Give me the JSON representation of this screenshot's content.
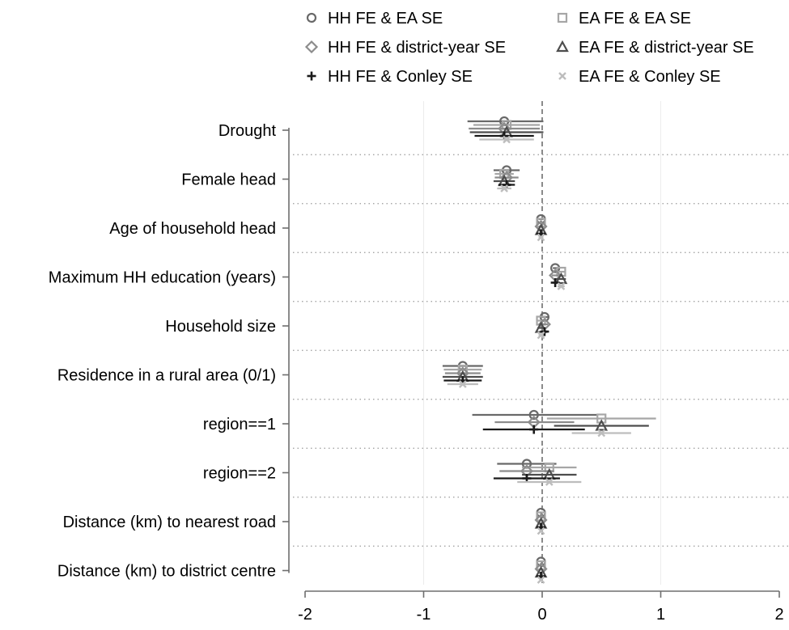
{
  "chart_data": {
    "type": "coefficient-plot",
    "title": "",
    "xlabel": "",
    "ylabel": "",
    "xlim": [
      -2,
      2
    ],
    "xticks": [
      -2,
      -1,
      0,
      1,
      2
    ],
    "xtick_labels": [
      "-2",
      "-1",
      "0",
      "1",
      "2"
    ],
    "reference_line": 0,
    "grid": "vertical gridlines at -1 and 1; dotted separators between variables",
    "legend_position": "top, 2 columns",
    "categories": [
      "Drought",
      "Female head",
      "Age of household head",
      "Maximum HH education (years)",
      "Household size",
      "Residence in a rural area (0/1)",
      "region==1",
      "region==2",
      "Distance (km) to nearest road",
      "Distance (km) to district centre"
    ],
    "series": [
      {
        "name": "HH FE & EA SE",
        "marker": "circle",
        "color": "#696969",
        "coef": [
          -0.32,
          -0.3,
          -0.01,
          0.11,
          0.02,
          -0.67,
          -0.07,
          -0.13,
          -0.01,
          -0.01
        ],
        "ci_low": [
          -0.63,
          -0.41,
          -0.03,
          0.09,
          -0.02,
          -0.84,
          -0.59,
          -0.38,
          -0.02,
          -0.01
        ],
        "ci_high": [
          0.01,
          -0.19,
          0.01,
          0.13,
          0.06,
          -0.5,
          0.46,
          0.12,
          0.0,
          0.0
        ]
      },
      {
        "name": "EA FE & EA SE",
        "marker": "square",
        "color": "#a6a6a6",
        "coef": [
          -0.3,
          -0.32,
          -0.01,
          0.16,
          -0.01,
          -0.67,
          0.5,
          0.06,
          -0.01,
          -0.01
        ],
        "ci_low": [
          -0.58,
          -0.4,
          -0.03,
          0.13,
          -0.05,
          -0.83,
          0.04,
          -0.17,
          -0.02,
          -0.01
        ],
        "ci_high": [
          -0.02,
          -0.24,
          0.01,
          0.19,
          0.03,
          -0.51,
          0.96,
          0.29,
          0.0,
          0.0
        ]
      },
      {
        "name": "HH FE & district-year SE",
        "marker": "diamond",
        "color": "#8c8c8c",
        "coef": [
          -0.32,
          -0.3,
          -0.01,
          0.11,
          0.02,
          -0.67,
          -0.07,
          -0.13,
          -0.01,
          -0.01
        ],
        "ci_low": [
          -0.62,
          -0.4,
          -0.03,
          0.08,
          -0.01,
          -0.82,
          -0.4,
          -0.36,
          -0.02,
          -0.01
        ],
        "ci_high": [
          -0.02,
          -0.2,
          0.01,
          0.14,
          0.05,
          -0.52,
          0.27,
          0.1,
          0.0,
          0.0
        ]
      },
      {
        "name": "EA FE & district-year SE",
        "marker": "triangle",
        "color": "#4d4d4d",
        "coef": [
          -0.3,
          -0.32,
          -0.01,
          0.16,
          -0.01,
          -0.67,
          0.5,
          0.06,
          -0.01,
          -0.01
        ],
        "ci_low": [
          -0.61,
          -0.41,
          -0.03,
          0.12,
          -0.04,
          -0.84,
          0.1,
          -0.17,
          -0.02,
          -0.01
        ],
        "ci_high": [
          0.01,
          -0.23,
          0.01,
          0.2,
          0.02,
          -0.5,
          0.9,
          0.29,
          0.0,
          0.0
        ]
      },
      {
        "name": "HH FE & Conley SE",
        "marker": "plus",
        "color": "#1a1a1a",
        "coef": [
          -0.32,
          -0.3,
          -0.01,
          0.11,
          0.02,
          -0.67,
          -0.07,
          -0.13,
          -0.01,
          -0.01
        ],
        "ci_low": [
          -0.57,
          -0.37,
          -0.03,
          0.09,
          -0.01,
          -0.83,
          -0.5,
          -0.41,
          -0.02,
          -0.01
        ],
        "ci_high": [
          -0.07,
          -0.23,
          0.01,
          0.13,
          0.05,
          -0.51,
          0.36,
          0.15,
          0.0,
          0.0
        ]
      },
      {
        "name": "EA FE & Conley SE",
        "marker": "x",
        "color": "#bdbdbd",
        "coef": [
          -0.3,
          -0.32,
          -0.01,
          0.16,
          -0.01,
          -0.67,
          0.5,
          0.06,
          -0.01,
          -0.01
        ],
        "ci_low": [
          -0.53,
          -0.38,
          -0.03,
          0.13,
          -0.03,
          -0.8,
          0.25,
          -0.21,
          -0.02,
          -0.01
        ],
        "ci_high": [
          -0.07,
          -0.26,
          0.01,
          0.19,
          0.01,
          -0.54,
          0.75,
          0.33,
          0.0,
          0.0
        ]
      }
    ]
  }
}
